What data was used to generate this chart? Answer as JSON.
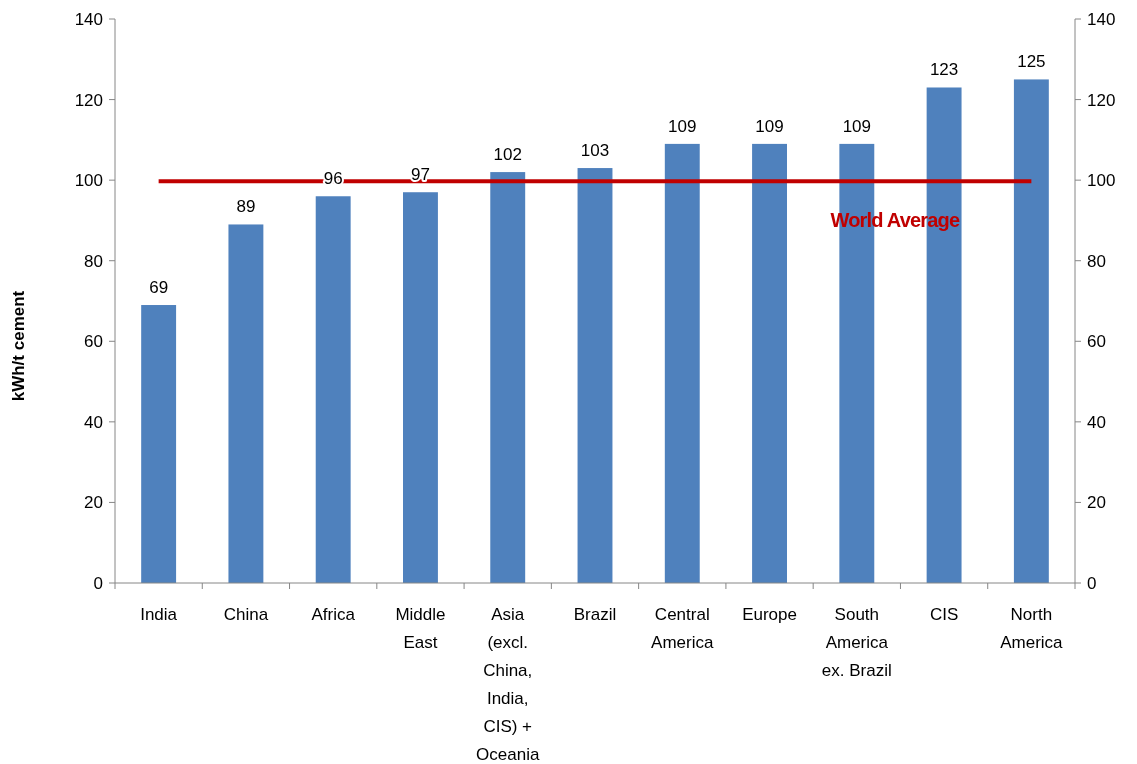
{
  "chart_data": {
    "type": "bar",
    "ylabel": "kWh/t cement",
    "categories": [
      "India",
      "China",
      "Africa",
      "Middle East",
      "Asia (excl. China, India, CIS) + Oceania",
      "Brazil",
      "Central America",
      "Europe",
      "South America ex. Brazil",
      "CIS",
      "North America"
    ],
    "values": [
      69,
      89,
      96,
      97,
      102,
      103,
      109,
      109,
      109,
      123,
      125
    ],
    "color": "#4f81bd",
    "data_labels": true,
    "ylim": [
      0,
      140
    ],
    "yticks": [
      0,
      20,
      40,
      60,
      80,
      100,
      120,
      140
    ],
    "y2lim": [
      0,
      140
    ],
    "y2ticks": [
      0,
      20,
      40,
      60,
      80,
      100,
      120,
      140
    ],
    "ref_lines": [
      {
        "axis": "y",
        "value": 99.7,
        "label": "World Average",
        "color": "#c00000",
        "line_style": "solid"
      }
    ],
    "grid": false
  }
}
